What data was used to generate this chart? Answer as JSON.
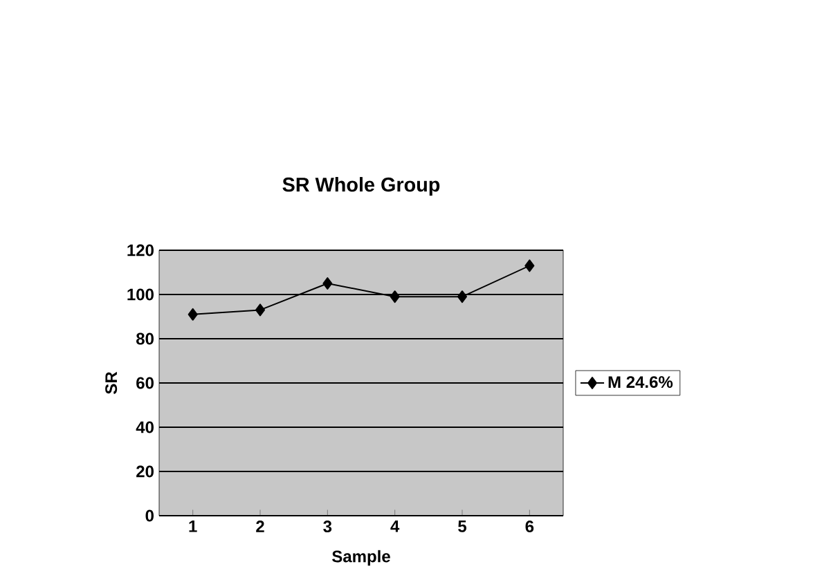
{
  "chart_data": {
    "type": "line",
    "title": "SR Whole Group",
    "xlabel": "Sample",
    "ylabel": "SR",
    "categories": [
      "1",
      "2",
      "3",
      "4",
      "5",
      "6"
    ],
    "series": [
      {
        "name": "M 24.6%",
        "color": "#000000",
        "values": [
          91,
          93,
          105,
          99,
          99,
          113
        ]
      }
    ],
    "ylim": [
      0,
      120
    ],
    "yticks": [
      0,
      20,
      40,
      60,
      80,
      100,
      120
    ],
    "grid": "y",
    "legend": "right",
    "marker": "diamond"
  }
}
